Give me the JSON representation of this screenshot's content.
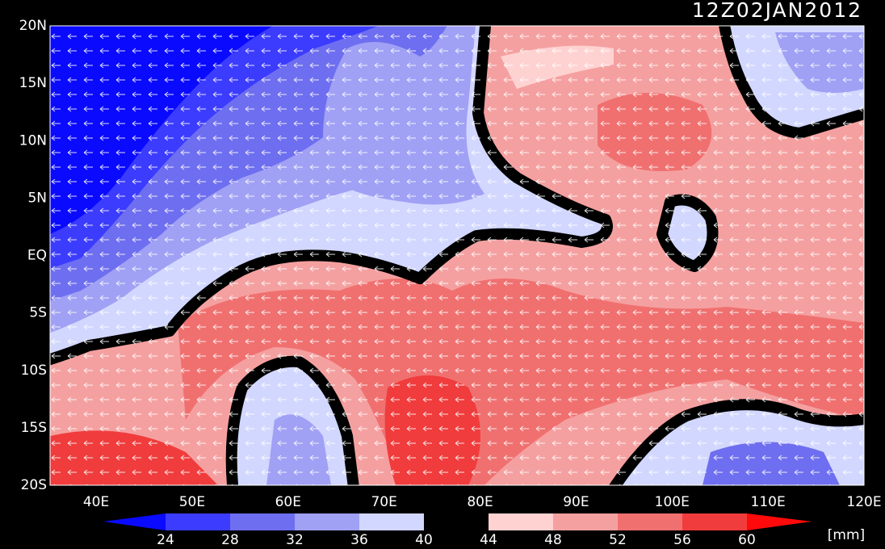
{
  "header": {
    "title": "12Z02JAN2012"
  },
  "map": {
    "lat_labels": [
      "20N",
      "15N",
      "10N",
      "5N",
      "EQ",
      "5S",
      "10S",
      "15S",
      "20S"
    ],
    "lon_labels": [
      "40E",
      "50E",
      "60E",
      "70E",
      "80E",
      "90E",
      "100E",
      "110E",
      "120E"
    ]
  },
  "colorbar": {
    "labels": [
      24,
      28,
      32,
      36,
      40,
      44,
      48,
      52,
      56,
      60
    ],
    "unit": "[mm]"
  }
}
